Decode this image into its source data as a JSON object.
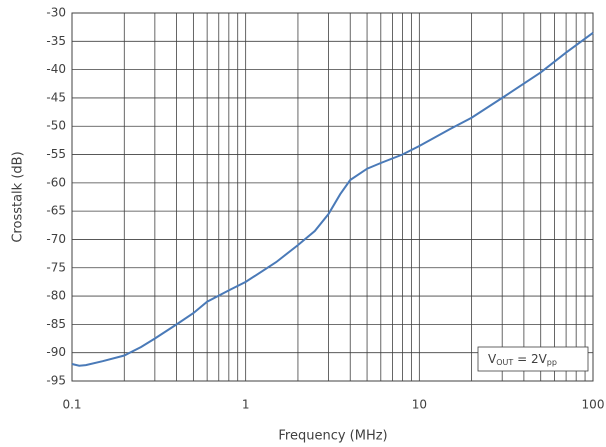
{
  "chart_data": {
    "type": "line",
    "x_label": "Frequency (MHz)",
    "y_label": "Crosstalk (dB)",
    "annotation": [
      "V",
      "OUT",
      " = 2V",
      "pp"
    ],
    "xscale": "log",
    "xlim": [
      0.1,
      100
    ],
    "xticks": [
      0.1,
      1,
      10,
      100
    ],
    "xgrid_minor": [
      0.2,
      0.3,
      0.4,
      0.5,
      0.6,
      0.7,
      0.8,
      0.9,
      2,
      3,
      4,
      5,
      6,
      7,
      8,
      9,
      20,
      30,
      40,
      50,
      60,
      70,
      80,
      90
    ],
    "ylim": [
      -95,
      -30
    ],
    "yticks": [
      -95,
      -90,
      -85,
      -80,
      -75,
      -70,
      -65,
      -60,
      -55,
      -50,
      -45,
      -40,
      -35,
      -30
    ],
    "grid": true,
    "series": [
      {
        "color": "#4a7ab8",
        "x": [
          0.1,
          0.11,
          0.12,
          0.15,
          0.2,
          0.25,
          0.3,
          0.4,
          0.5,
          0.6,
          0.8,
          1,
          1.5,
          2,
          2.5,
          3,
          3.5,
          4,
          5,
          6,
          8,
          10,
          15,
          20,
          30,
          50,
          70,
          100
        ],
        "values": [
          -92,
          -92.3,
          -92.2,
          -91.5,
          -90.5,
          -89,
          -87.5,
          -85,
          -83,
          -81,
          -79,
          -77.5,
          -74,
          -71,
          -68.5,
          -65.5,
          -62,
          -59.5,
          -57.5,
          -56.5,
          -55,
          -53.5,
          -50.5,
          -48.5,
          -45,
          -40.5,
          -37,
          -33.5
        ]
      }
    ]
  }
}
